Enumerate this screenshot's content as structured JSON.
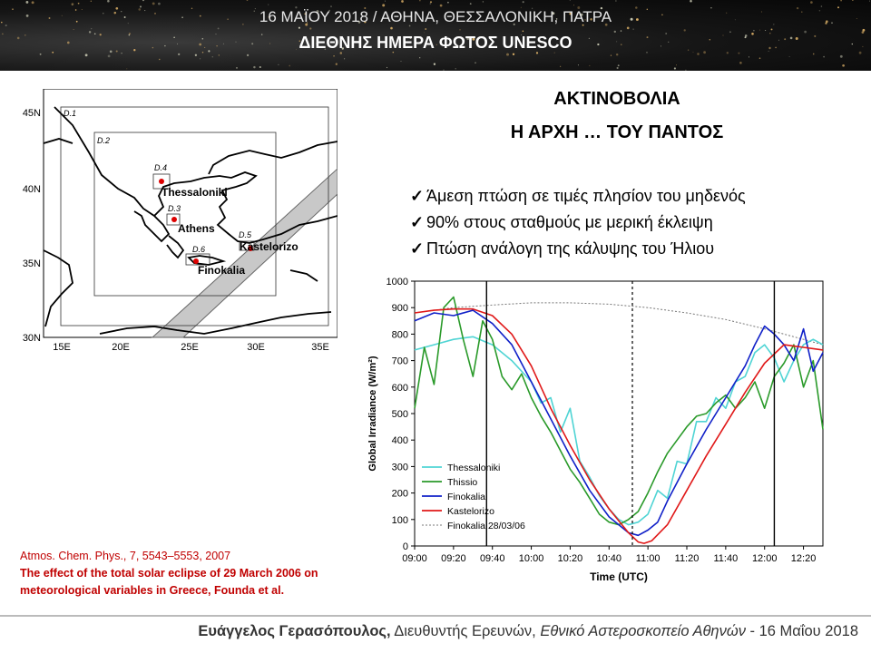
{
  "banner": {
    "line1": "16 ΜΑΪΟΥ 2018 / ΑΘΗΝΑ, ΘΕΣΣΑΛΟΝΙΚΗ, ΠΑΤΡΑ",
    "line2": "ΔΙΕΘΝΗΣ ΗΜΕΡΑ ΦΩΤΟΣ UNESCO"
  },
  "title": {
    "line1": "ΑΚΤΙΝΟΒΟΛΙΑ",
    "line2": "Η ΑΡΧΗ … ΤΟΥ ΠΑΝΤΟΣ"
  },
  "bullets": [
    "Άμεση πτώση σε τιμές πλησίον του μηδενός",
    "90% στους σταθμούς με μερική έκλειψη",
    "Πτώση ανάλογη της κάλυψης του Ήλιου"
  ],
  "check_symbol": "✓",
  "map": {
    "lat_labels": [
      "45N",
      "40N",
      "35N",
      "30N"
    ],
    "lon_labels": [
      "15E",
      "20E",
      "25E",
      "30E",
      "35E"
    ],
    "domains": [
      "D.1",
      "D.2",
      "D.3",
      "D.4",
      "D.5",
      "D.6"
    ],
    "stations": [
      "Thessaloniki",
      "Athens",
      "Kastelorizo",
      "Finokalia"
    ],
    "station_color": "#dd0000"
  },
  "citation": {
    "journal": "Atmos. Chem. Phys., 7, 5543–5553, 2007",
    "title_line1": "The effect of the total solar eclipse of 29 March 2006 on",
    "title_line2": "meteorological variables in Greece, Founda et al."
  },
  "footer": {
    "name": "Ευάγγελος Γερασόπουλος,",
    "role": " Διευθυντής Ερευνών, ",
    "inst": "Εθνικό Αστεροσκοπείο Αθηνών",
    "date": " - 16 Μαΐου 2018"
  },
  "chart_data": {
    "type": "line",
    "xlabel": "Time (UTC)",
    "ylabel": "Global Irradiance (W/m²)",
    "x_tick_labels": [
      "09:00",
      "09:20",
      "09:40",
      "10:00",
      "10:20",
      "10:40",
      "11:00",
      "11:20",
      "11:40",
      "12:00",
      "12:20"
    ],
    "y_ticks": [
      0,
      100,
      200,
      300,
      400,
      500,
      600,
      700,
      800,
      900,
      1000
    ],
    "xlim_minutes": [
      540,
      750
    ],
    "ylim": [
      0,
      1000
    ],
    "vertical_lines": [
      {
        "time": "09:37",
        "style": "solid"
      },
      {
        "time": "10:52",
        "style": "dashed"
      },
      {
        "time": "12:05",
        "style": "solid"
      }
    ],
    "legend_position": "bottom-left",
    "series": [
      {
        "name": "Thessaloniki",
        "color": "#4fd4d4",
        "dash": "",
        "t": [
          540,
          550,
          560,
          570,
          580,
          590,
          600,
          605,
          610,
          615,
          620,
          625,
          630,
          635,
          640,
          645,
          650,
          655,
          660,
          665,
          670,
          675,
          680,
          685,
          690,
          695,
          700,
          705,
          710,
          715,
          720,
          725,
          730,
          735,
          740,
          745,
          750
        ],
        "v": [
          740,
          760,
          780,
          790,
          760,
          700,
          620,
          540,
          560,
          430,
          520,
          320,
          260,
          190,
          140,
          100,
          80,
          90,
          120,
          210,
          180,
          320,
          310,
          470,
          470,
          560,
          520,
          620,
          640,
          730,
          760,
          710,
          620,
          700,
          760,
          780,
          760
        ]
      },
      {
        "name": "Thissio",
        "color": "#2a9a2a",
        "dash": "",
        "t": [
          540,
          545,
          550,
          555,
          560,
          565,
          570,
          575,
          580,
          585,
          590,
          595,
          600,
          605,
          610,
          615,
          620,
          625,
          630,
          635,
          640,
          645,
          650,
          655,
          660,
          665,
          670,
          675,
          680,
          685,
          690,
          695,
          700,
          705,
          710,
          715,
          720,
          725,
          730,
          735,
          740,
          745,
          750
        ],
        "v": [
          520,
          750,
          610,
          900,
          940,
          780,
          640,
          850,
          780,
          640,
          590,
          650,
          560,
          490,
          430,
          360,
          290,
          240,
          180,
          120,
          90,
          80,
          100,
          130,
          200,
          280,
          350,
          400,
          450,
          490,
          500,
          540,
          570,
          520,
          560,
          620,
          520,
          640,
          690,
          760,
          600,
          700,
          440
        ]
      },
      {
        "name": "Finokalia",
        "color": "#1020c8",
        "dash": "",
        "t": [
          540,
          550,
          560,
          570,
          580,
          590,
          600,
          610,
          620,
          630,
          640,
          650,
          655,
          660,
          665,
          670,
          680,
          690,
          700,
          710,
          715,
          720,
          725,
          730,
          735,
          740,
          745,
          750
        ],
        "v": [
          850,
          880,
          870,
          890,
          840,
          760,
          620,
          480,
          340,
          210,
          110,
          50,
          40,
          60,
          90,
          170,
          310,
          440,
          560,
          680,
          760,
          830,
          800,
          760,
          700,
          820,
          660,
          730
        ]
      },
      {
        "name": "Kastelorizo",
        "color": "#e01818",
        "dash": "",
        "t": [
          540,
          550,
          560,
          570,
          580,
          590,
          600,
          610,
          620,
          630,
          640,
          650,
          655,
          658,
          662,
          670,
          680,
          690,
          700,
          710,
          720,
          730,
          740,
          750
        ],
        "v": [
          880,
          890,
          895,
          895,
          870,
          800,
          680,
          520,
          380,
          250,
          140,
          50,
          15,
          10,
          20,
          80,
          210,
          340,
          460,
          580,
          690,
          760,
          750,
          740
        ]
      },
      {
        "name": "Finokalia 28/03/06",
        "color": "#777777",
        "dash": "2,2",
        "t": [
          540,
          560,
          580,
          600,
          620,
          640,
          660,
          680,
          700,
          720,
          740,
          750
        ],
        "v": [
          880,
          900,
          910,
          918,
          918,
          913,
          900,
          880,
          855,
          820,
          780,
          760
        ]
      }
    ]
  }
}
